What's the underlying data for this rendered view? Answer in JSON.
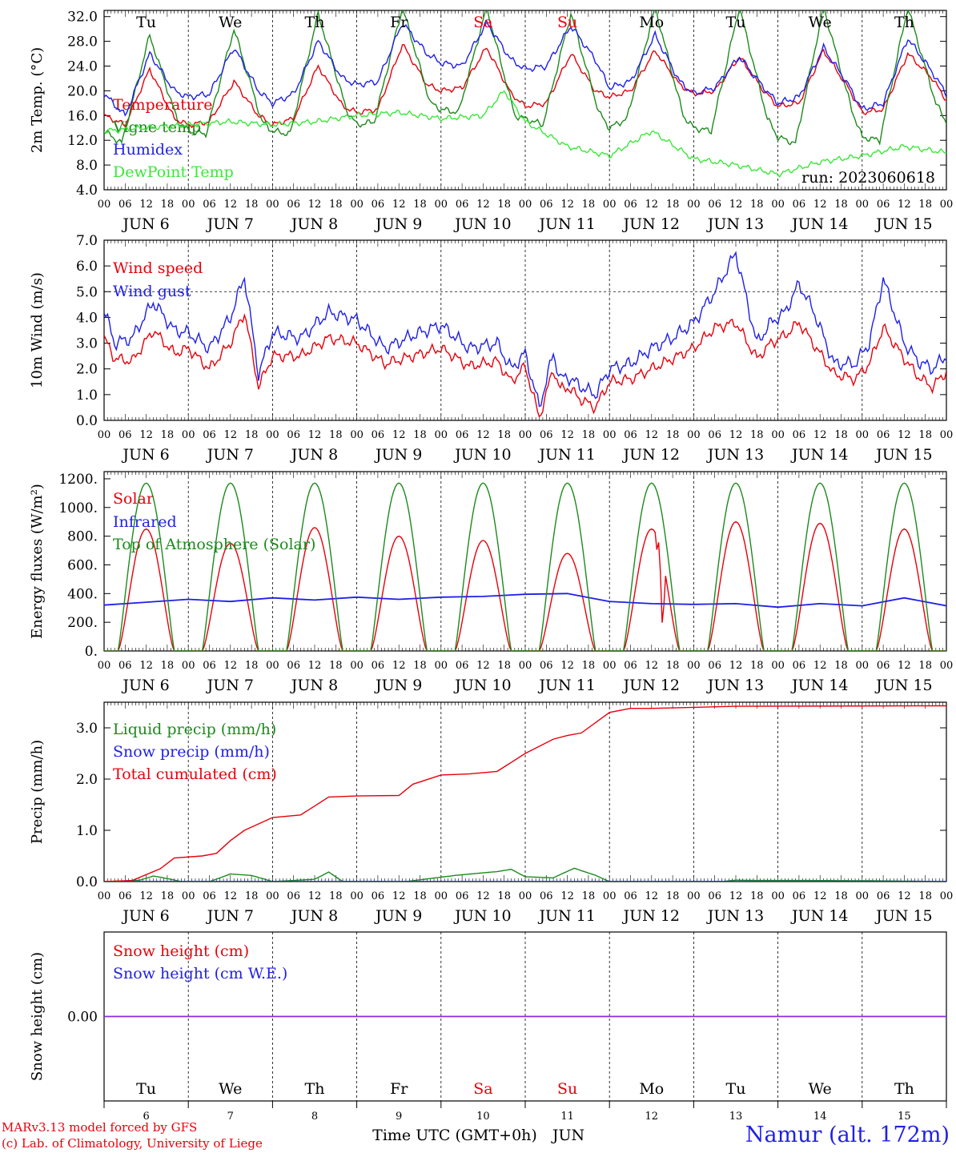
{
  "title": "",
  "run_label": "run: 2023060618",
  "footer": {
    "credit_line1": "MARv3.13 model forced by GFS",
    "credit_line2": "(c) Lab. of Climatology, University of Liege",
    "location": "Namur (alt. 172m)",
    "time_axis_label": "Time UTC (GMT+0h)",
    "month_label": "JUN"
  },
  "colors": {
    "red": "#e8000b",
    "dark_green": "#1c8a1c",
    "blue": "#1f1fe8",
    "light_green": "#3ae83a",
    "purple": "#8a2be2"
  },
  "days": {
    "weekday_labels": [
      "Tu",
      "We",
      "Th",
      "Fr",
      "Sa",
      "Su",
      "Mo",
      "Tu",
      "We",
      "Th"
    ],
    "weekend_indices": [
      4,
      5
    ],
    "date_labels": [
      "JUN   6",
      "JUN   7",
      "JUN   8",
      "JUN   9",
      "JUN  10",
      "JUN  11",
      "JUN  12",
      "JUN  13",
      "JUN  14",
      "JUN  15"
    ],
    "day_numbers": [
      "6",
      "7",
      "8",
      "9",
      "10",
      "11",
      "12",
      "13",
      "14",
      "15"
    ],
    "hour_labels": [
      "00",
      "06",
      "12",
      "18"
    ],
    "end_hour_label": "00"
  },
  "chart_data": [
    {
      "type": "line",
      "ylabel": "2m Temp. (°C)",
      "ylim": [
        4,
        33
      ],
      "yticks": [
        "4.0",
        "8.0",
        "12.0",
        "16.0",
        "20.0",
        "24.0",
        "28.0",
        "32.0"
      ],
      "x_unit": "hours since 2023-06-06 00 UTC",
      "grid": "vertical dashed at day boundaries",
      "legend_position": "left",
      "series": [
        {
          "name": "Temperature",
          "color": "#e8000b",
          "x": [
            0,
            6,
            13,
            20,
            24,
            30,
            37,
            44,
            48,
            54,
            61,
            68,
            72,
            78,
            85,
            92,
            96,
            102,
            109,
            116,
            120,
            126,
            133,
            140,
            144,
            150,
            157,
            164,
            168,
            174,
            181,
            188,
            192,
            198,
            205,
            212,
            216,
            222,
            229,
            236,
            240
          ],
          "y": [
            16.0,
            14.5,
            23.5,
            15.5,
            14.5,
            15.0,
            21.5,
            16.0,
            14.5,
            15.5,
            24.0,
            17.5,
            16.5,
            17.0,
            27.5,
            21.0,
            20.0,
            20.5,
            27.0,
            19.5,
            17.5,
            18.0,
            26.0,
            20.0,
            19.0,
            20.0,
            26.5,
            21.0,
            19.5,
            20.0,
            25.5,
            20.0,
            17.5,
            18.0,
            26.5,
            20.5,
            16.5,
            17.0,
            26.0,
            22.0,
            18.5
          ]
        },
        {
          "name": "Vigne temp",
          "color": "#1c8a1c",
          "x": [
            0,
            5,
            13,
            21,
            24,
            29,
            37,
            45,
            48,
            53,
            61,
            69,
            72,
            77,
            85,
            93,
            96,
            101,
            109,
            117,
            120,
            125,
            133,
            141,
            144,
            149,
            157,
            165,
            168,
            173,
            181,
            189,
            192,
            197,
            205,
            213,
            216,
            221,
            229,
            237,
            240
          ],
          "y": [
            13.5,
            11.5,
            29.0,
            15.0,
            13.5,
            13.0,
            30.0,
            15.0,
            13.5,
            13.0,
            32.5,
            17.0,
            14.5,
            15.0,
            33.5,
            18.0,
            17.0,
            16.5,
            33.5,
            16.0,
            15.5,
            14.5,
            32.5,
            16.5,
            14.0,
            15.5,
            33.5,
            16.0,
            14.0,
            13.5,
            33.5,
            15.5,
            12.5,
            11.5,
            33.5,
            17.0,
            12.5,
            12.0,
            33.5,
            18.0,
            15.0
          ]
        },
        {
          "name": "Humidex",
          "color": "#1f1fe8",
          "x": [
            0,
            6,
            13,
            20,
            24,
            30,
            37,
            44,
            48,
            54,
            61,
            68,
            72,
            78,
            85,
            92,
            96,
            102,
            109,
            116,
            120,
            126,
            133,
            140,
            144,
            150,
            157,
            164,
            168,
            174,
            181,
            188,
            192,
            198,
            205,
            212,
            216,
            222,
            229,
            236,
            240
          ],
          "y": [
            19.5,
            16.0,
            26.0,
            20.0,
            19.0,
            19.5,
            27.0,
            20.0,
            18.0,
            19.5,
            28.0,
            22.0,
            21.0,
            21.5,
            31.0,
            26.0,
            24.5,
            24.0,
            31.0,
            25.0,
            23.5,
            24.0,
            30.5,
            25.0,
            20.5,
            21.5,
            29.0,
            21.5,
            19.5,
            20.5,
            25.5,
            20.5,
            18.0,
            19.0,
            27.0,
            21.0,
            17.0,
            18.0,
            28.5,
            23.0,
            19.5
          ]
        },
        {
          "name": "DewPoint Temp",
          "color": "#3ae83a",
          "x": [
            0,
            12,
            24,
            36,
            48,
            60,
            72,
            84,
            96,
            108,
            114,
            120,
            132,
            144,
            156,
            168,
            180,
            192,
            204,
            216,
            228,
            240
          ],
          "y": [
            13.5,
            14.0,
            14.5,
            15.0,
            14.5,
            15.0,
            16.0,
            16.5,
            15.5,
            16.0,
            20.0,
            15.0,
            11.0,
            9.5,
            13.5,
            9.0,
            8.0,
            6.5,
            8.5,
            9.5,
            11.0,
            10.0
          ]
        }
      ]
    },
    {
      "type": "line",
      "ylabel": "10m Wind (m/s)",
      "ylim": [
        0,
        7
      ],
      "yticks": [
        "0.0",
        "1.0",
        "2.0",
        "3.0",
        "4.0",
        "5.0",
        "6.0",
        "7.0"
      ],
      "hline": 5.0,
      "x_unit": "hours since 2023-06-06 00 UTC",
      "legend_position": "left",
      "series": [
        {
          "name": "Wind speed",
          "color": "#e8000b",
          "x": [
            0,
            3,
            8,
            14,
            20,
            24,
            30,
            36,
            40,
            44,
            48,
            56,
            64,
            72,
            80,
            88,
            96,
            104,
            112,
            116,
            120,
            124,
            128,
            130,
            132,
            136,
            140,
            144,
            150,
            156,
            162,
            168,
            174,
            180,
            186,
            190,
            194,
            198,
            202,
            208,
            214,
            218,
            222,
            228,
            232,
            236,
            240
          ],
          "y": [
            3.2,
            2.4,
            2.3,
            3.5,
            2.6,
            2.8,
            2.0,
            3.0,
            4.2,
            1.3,
            2.5,
            2.5,
            3.2,
            3.0,
            2.2,
            2.5,
            2.8,
            2.1,
            2.3,
            1.5,
            2.1,
            0.1,
            2.0,
            1.2,
            1.3,
            0.8,
            0.5,
            1.5,
            1.6,
            2.0,
            2.4,
            2.8,
            3.6,
            3.8,
            2.4,
            3.0,
            3.3,
            3.8,
            3.0,
            1.8,
            1.6,
            2.2,
            3.6,
            2.4,
            1.7,
            1.3,
            1.9
          ]
        },
        {
          "name": "Wind gust",
          "color": "#1f1fe8",
          "x": [
            0,
            3,
            8,
            14,
            20,
            24,
            30,
            36,
            40,
            44,
            48,
            56,
            64,
            72,
            80,
            88,
            96,
            104,
            112,
            116,
            120,
            124,
            128,
            130,
            132,
            136,
            140,
            144,
            150,
            156,
            162,
            168,
            174,
            180,
            186,
            190,
            194,
            198,
            202,
            208,
            214,
            218,
            222,
            228,
            232,
            236,
            240
          ],
          "y": [
            4.3,
            3.0,
            3.2,
            4.6,
            3.5,
            3.4,
            2.8,
            4.0,
            5.6,
            1.8,
            3.4,
            3.2,
            4.2,
            3.9,
            2.8,
            3.3,
            3.7,
            2.8,
            3.0,
            2.0,
            2.6,
            0.5,
            2.6,
            1.6,
            1.7,
            1.3,
            1.0,
            2.0,
            2.2,
            2.8,
            3.2,
            3.8,
            5.0,
            6.5,
            3.0,
            3.8,
            4.2,
            5.3,
            4.3,
            2.2,
            2.2,
            3.0,
            5.5,
            3.0,
            2.3,
            2.0,
            2.5
          ]
        }
      ]
    },
    {
      "type": "line",
      "ylabel": "Energy fluxes (W/m²)",
      "ylim": [
        0,
        1250
      ],
      "yticks": [
        "0.",
        "200.",
        "400.",
        "600.",
        "800.",
        "1000.",
        "1200."
      ],
      "x_unit": "hours since 2023-06-06 00 UTC",
      "legend_position": "left",
      "daily_peaks": {
        "Solar": [
          850,
          750,
          860,
          800,
          770,
          680,
          850,
          900,
          890,
          850
        ],
        "Top of Atmosphere (Solar)": [
          1170,
          1170,
          1170,
          1170,
          1170,
          1170,
          1170,
          1170,
          1170,
          1170
        ]
      },
      "day_length_hours": {
        "Solar_start": 4,
        "Solar_end": 20,
        "TOA_start": 4,
        "TOA_end": 20
      },
      "series": [
        {
          "name": "Solar",
          "color": "#e8000b",
          "x": [],
          "y": []
        },
        {
          "name": "Infrared",
          "color": "#1f1fe8",
          "x": [
            0,
            12,
            24,
            36,
            48,
            60,
            72,
            84,
            96,
            108,
            120,
            132,
            144,
            156,
            168,
            180,
            192,
            204,
            216,
            228,
            240
          ],
          "y": [
            320,
            340,
            360,
            345,
            370,
            355,
            375,
            360,
            375,
            380,
            395,
            400,
            345,
            330,
            325,
            330,
            305,
            330,
            315,
            370,
            315
          ]
        },
        {
          "name": "Top of Atmosphere (Solar)",
          "color": "#1c8a1c",
          "x": [],
          "y": []
        }
      ]
    },
    {
      "type": "line",
      "ylabel": "Precip (mm/h)",
      "ylim": [
        0,
        3.5
      ],
      "yticks": [
        "0.0",
        "1.0",
        "2.0",
        "3.0"
      ],
      "x_unit": "hours since 2023-06-06 00 UTC",
      "legend_position": "left",
      "series": [
        {
          "name": "Liquid precip (mm/h)",
          "color": "#1c8a1c",
          "x": [
            0,
            10,
            14,
            18,
            22,
            30,
            36,
            42,
            48,
            60,
            64,
            68,
            76,
            86,
            100,
            112,
            116,
            120,
            128,
            134,
            140,
            144,
            150,
            156,
            176,
            180,
            240
          ],
          "y": [
            0.0,
            0.05,
            0.2,
            0.1,
            0.0,
            0.0,
            0.2,
            0.15,
            0.0,
            0.05,
            0.2,
            0.0,
            0.0,
            0.0,
            0.12,
            0.2,
            0.25,
            0.1,
            0.08,
            0.3,
            0.15,
            0.0,
            0.0,
            0.0,
            0.0,
            0.06,
            0.0
          ]
        },
        {
          "name": "Snow precip (mm/h)",
          "color": "#1f1fe8",
          "x": [
            0,
            240
          ],
          "y": [
            0.0,
            0.0
          ]
        },
        {
          "name": "Total cumulated (cm)",
          "color": "#e8000b",
          "x": [
            0,
            8,
            16,
            20,
            28,
            32,
            36,
            40,
            48,
            56,
            64,
            72,
            84,
            88,
            96,
            104,
            112,
            120,
            128,
            132,
            136,
            144,
            150,
            156,
            168,
            180,
            240
          ],
          "y": [
            0.0,
            0.02,
            0.25,
            0.46,
            0.5,
            0.55,
            0.8,
            1.0,
            1.25,
            1.3,
            1.65,
            1.67,
            1.68,
            1.9,
            2.08,
            2.1,
            2.15,
            2.5,
            2.78,
            2.85,
            2.9,
            3.3,
            3.38,
            3.38,
            3.4,
            3.42,
            3.43
          ]
        }
      ]
    },
    {
      "type": "line",
      "ylabel": "Snow height (cm)",
      "ylim": [
        -1,
        1
      ],
      "yticks": [
        "0.00"
      ],
      "x_unit": "hours since 2023-06-06 00 UTC",
      "legend_position": "left",
      "series": [
        {
          "name": "Snow height (cm)",
          "color": "#e8000b",
          "x": [
            0,
            240
          ],
          "y": [
            0.0,
            0.0
          ]
        },
        {
          "name": "Snow height (cm W.E.)",
          "color": "#1f1fe8",
          "x": [
            0,
            240
          ],
          "y": [
            0.0,
            0.0
          ]
        }
      ]
    }
  ]
}
